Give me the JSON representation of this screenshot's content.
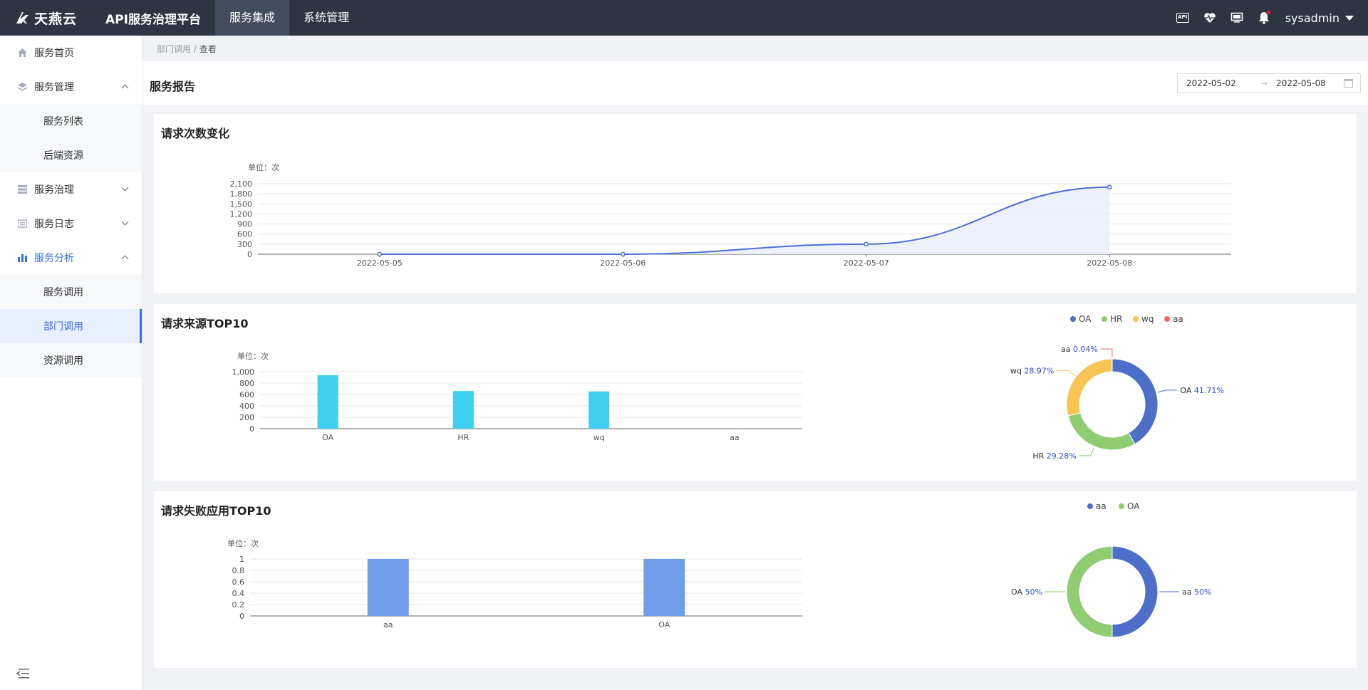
{
  "header": {
    "logo_text": "天燕云",
    "platform_title": "API服务治理平台",
    "nav": [
      "服务集成",
      "系统管理"
    ],
    "api_icon_label": "API",
    "username": "sysadmin"
  },
  "sidebar": {
    "items": [
      {
        "label": "服务首页"
      },
      {
        "label": "服务管理",
        "children": [
          "服务列表",
          "后端资源"
        ]
      },
      {
        "label": "服务治理"
      },
      {
        "label": "服务日志"
      },
      {
        "label": "服务分析",
        "children": [
          "服务调用",
          "部门调用",
          "资源调用"
        ]
      }
    ]
  },
  "breadcrumb": {
    "parent": "部门调用",
    "separator": "/",
    "current": "查看"
  },
  "report": {
    "title": "服务报告",
    "date_start": "2022-05-02",
    "date_sep": "→",
    "date_end": "2022-05-08"
  },
  "colors": {
    "primary": "#3a6de3",
    "line": "#4a6fd8",
    "bar_cyan": "#3ecef0",
    "bar_blue": "#6f9de8",
    "oa": "#4e6fc9",
    "hr": "#8fcc72",
    "wq": "#f8c453",
    "aa_red": "#ee6666"
  },
  "chart_data": [
    {
      "type": "line",
      "title": "请求次数变化",
      "unit": "单位：次",
      "x": [
        "2022-05-05",
        "2022-05-06",
        "2022-05-07",
        "2022-05-08"
      ],
      "values": [
        0,
        0,
        300,
        2000
      ],
      "y_ticks": [
        "0",
        "300",
        "600",
        "900",
        "1,200",
        "1,500",
        "1,800",
        "2,100"
      ],
      "ylim": [
        0,
        2100
      ],
      "area": true,
      "grid": true
    },
    {
      "type": "bar",
      "title": "请求来源TOP10",
      "unit": "单位：次",
      "categories": [
        "OA",
        "HR",
        "wq",
        "aa"
      ],
      "values": [
        940,
        660,
        654,
        1
      ],
      "y_ticks": [
        "0",
        "200",
        "400",
        "600",
        "800",
        "1,000"
      ],
      "ylim": [
        0,
        1000
      ],
      "grid": true
    },
    {
      "type": "pie",
      "legend": [
        "OA",
        "HR",
        "wq",
        "aa"
      ],
      "legend_position": "top",
      "slices": [
        {
          "name": "OA",
          "value": 41.71,
          "label": "41.71%"
        },
        {
          "name": "HR",
          "value": 29.28,
          "label": "29.28%"
        },
        {
          "name": "wq",
          "value": 28.97,
          "label": "28.97%"
        },
        {
          "name": "aa",
          "value": 0.04,
          "label": "0.04%"
        }
      ]
    },
    {
      "type": "bar",
      "title": "请求失败应用TOP10",
      "unit": "单位：次",
      "categories": [
        "aa",
        "OA"
      ],
      "values": [
        1,
        1
      ],
      "y_ticks": [
        "0",
        "0.2",
        "0.4",
        "0.6",
        "0.8",
        "1"
      ],
      "ylim": [
        0,
        1
      ],
      "grid": true
    },
    {
      "type": "pie",
      "legend": [
        "aa",
        "OA"
      ],
      "legend_position": "top",
      "slices": [
        {
          "name": "aa",
          "value": 50,
          "label": "50%"
        },
        {
          "name": "OA",
          "value": 50,
          "label": "50%"
        }
      ]
    }
  ]
}
